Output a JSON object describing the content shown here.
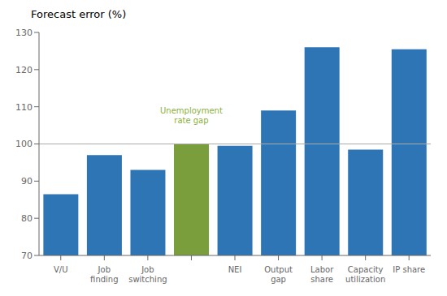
{
  "chart_data": {
    "type": "bar",
    "y_label": "Forecast error (%)",
    "categories": [
      "V/U",
      "Job\nfinding",
      "Job\nswitching",
      null,
      "NEI",
      "Output\ngap",
      "Labor\nshare",
      "Capacity\nutilization",
      "IP share"
    ],
    "values": [
      86.5,
      97.0,
      93.0,
      100.0,
      99.5,
      109.0,
      126.0,
      98.5,
      125.5
    ],
    "colors": [
      "#2E75B6",
      "#2E75B6",
      "#2E75B6",
      "#7A9E3B",
      "#2E75B6",
      "#2E75B6",
      "#2E75B6",
      "#2E75B6",
      "#2E75B6"
    ],
    "ylim": [
      70,
      130
    ],
    "yticks": [
      70,
      80,
      90,
      100,
      110,
      120,
      130
    ],
    "grid": false,
    "hline": {
      "y": 100,
      "color": "#AAAAAA"
    },
    "annotations": [
      {
        "text": "Unemployment\nrate gap",
        "x": 3,
        "y": 105,
        "color": "#8BB040"
      }
    ]
  }
}
